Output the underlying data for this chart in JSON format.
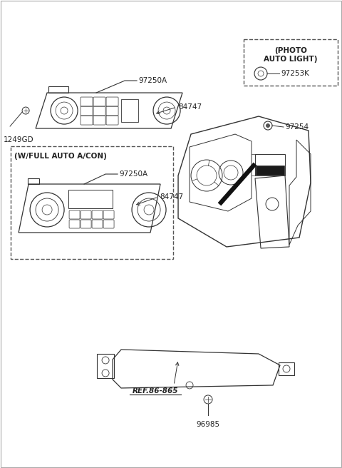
{
  "bg_color": "#ffffff",
  "fig_width": 4.8,
  "fig_height": 6.56,
  "dpi": 100,
  "lc": "#333333",
  "tc": "#222222",
  "labels": {
    "97250A_top": "97250A",
    "84747_top": "84747",
    "1249GD": "1249GD",
    "w_full_auto": "(W/FULL AUTO A/CON)",
    "97250A_bot": "97250A",
    "84747_bot": "84747",
    "photo_line1": "(PHOTO",
    "photo_line2": "AUTO LIGHT)",
    "97253K": "97253K",
    "97254": "97254",
    "ref_86_865": "REF.86-865",
    "96985": "96985"
  }
}
